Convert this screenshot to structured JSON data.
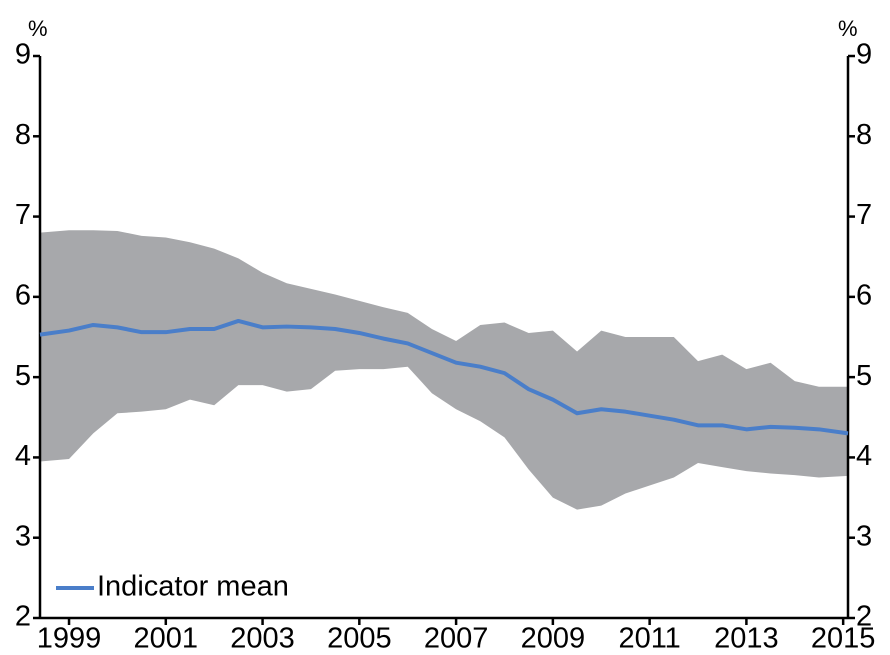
{
  "chart_data": {
    "type": "line",
    "y_label": "%",
    "y2_label": "%",
    "x": [
      1998.4,
      1999,
      1999.5,
      2000,
      2000.5,
      2001,
      2001.5,
      2002,
      2002.5,
      2003,
      2003.5,
      2004,
      2004.5,
      2005,
      2005.5,
      2006,
      2006.5,
      2007,
      2007.5,
      2008,
      2008.5,
      2009,
      2009.5,
      2010,
      2010.5,
      2011,
      2011.5,
      2012,
      2012.5,
      2013,
      2013.5,
      2014,
      2014.5,
      2015.1
    ],
    "series": [
      {
        "name": "Indicator mean",
        "color": "#4a7ec9",
        "values": [
          5.53,
          5.58,
          5.65,
          5.62,
          5.56,
          5.56,
          5.6,
          5.6,
          5.7,
          5.62,
          5.63,
          5.62,
          5.6,
          5.55,
          5.48,
          5.42,
          5.3,
          5.18,
          5.13,
          5.05,
          4.85,
          4.72,
          4.55,
          4.6,
          4.57,
          4.52,
          4.47,
          4.4,
          4.4,
          4.35,
          4.38,
          4.37,
          4.35,
          4.3
        ]
      }
    ],
    "band": {
      "color": "#a7a8ab",
      "upper": [
        6.8,
        6.83,
        6.83,
        6.82,
        6.76,
        6.74,
        6.68,
        6.6,
        6.48,
        6.3,
        6.17,
        6.1,
        6.03,
        5.95,
        5.87,
        5.8,
        5.6,
        5.45,
        5.65,
        5.68,
        5.55,
        5.58,
        5.32,
        5.58,
        5.5,
        5.5,
        5.5,
        5.2,
        5.28,
        5.1,
        5.18,
        4.95,
        4.88,
        4.88
      ],
      "lower": [
        3.95,
        3.98,
        4.3,
        4.55,
        4.57,
        4.6,
        4.72,
        4.65,
        4.9,
        4.9,
        4.82,
        4.85,
        5.08,
        5.1,
        5.1,
        5.13,
        4.8,
        4.6,
        4.45,
        4.25,
        3.85,
        3.5,
        3.35,
        3.4,
        3.55,
        3.65,
        3.75,
        3.93,
        3.88,
        3.83,
        3.8,
        3.78,
        3.75,
        3.77
      ]
    },
    "xlim": [
      1998.4,
      2015.1
    ],
    "xticks": [
      1999,
      2001,
      2003,
      2005,
      2007,
      2009,
      2011,
      2013,
      2015
    ],
    "ylim": [
      2,
      9
    ],
    "yticks": [
      2,
      3,
      4,
      5,
      6,
      7,
      8,
      9
    ],
    "y2lim": [
      2,
      9
    ],
    "y2ticks": [
      2,
      3,
      4,
      5,
      6,
      7,
      8,
      9
    ],
    "legend": "lower-left",
    "grid": false
  }
}
